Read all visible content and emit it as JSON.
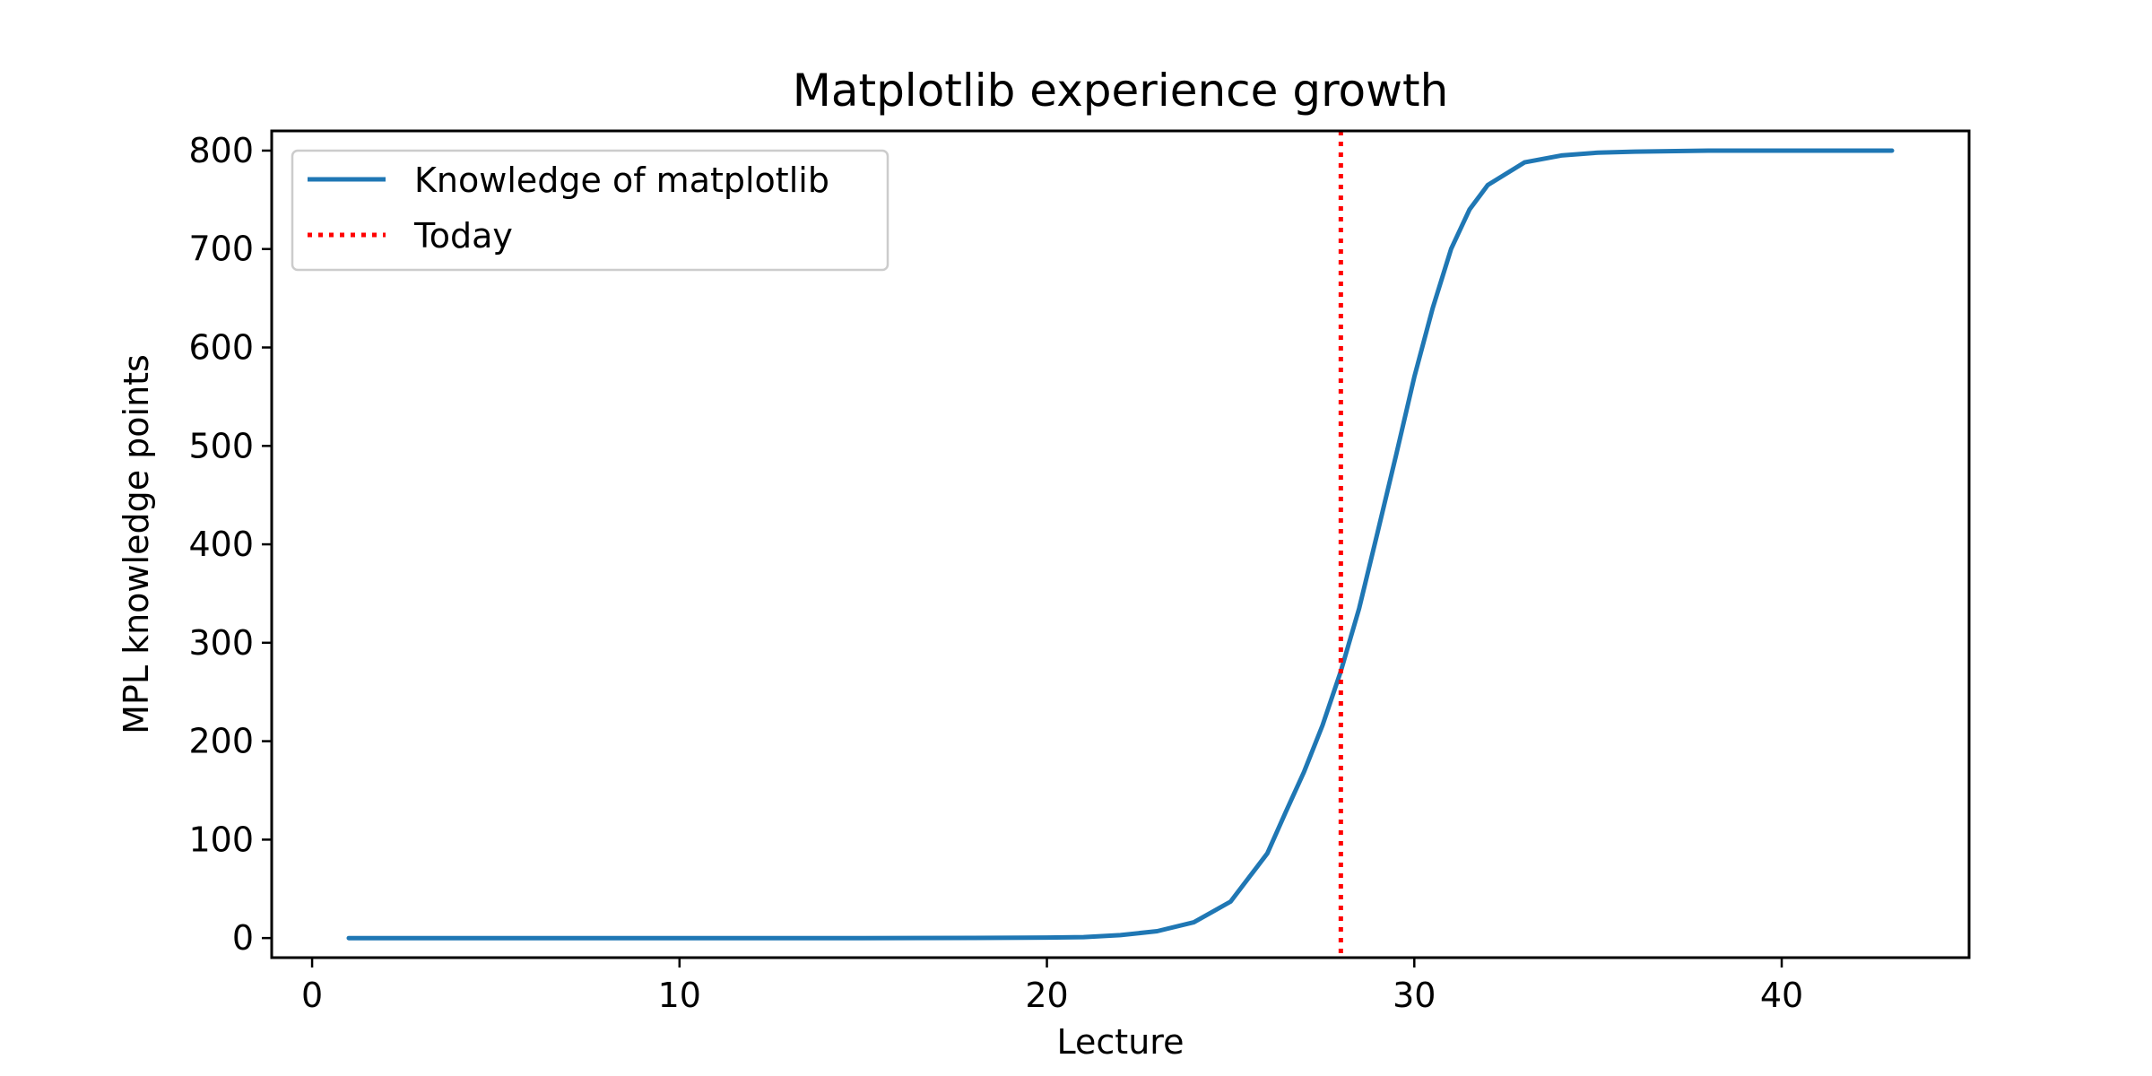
{
  "chart_data": {
    "type": "line",
    "title": "Matplotlib experience growth",
    "xlabel": "Lecture",
    "ylabel": "MPL knowledge points",
    "xlim": [
      -1.1,
      45.1
    ],
    "ylim": [
      -19.9,
      820
    ],
    "xticks": [
      0,
      10,
      20,
      30,
      40
    ],
    "yticks": [
      0,
      100,
      200,
      300,
      400,
      500,
      600,
      700,
      800
    ],
    "grid": false,
    "legend_position": "upper left",
    "series": [
      {
        "name": "Knowledge of matplotlib",
        "style": "solid",
        "color": "#1f77b4",
        "x": [
          1,
          5,
          10,
          15,
          18,
          20,
          21,
          22,
          23,
          24,
          25,
          26,
          26.5,
          27,
          27.5,
          28,
          28.5,
          29,
          29.5,
          30,
          30.5,
          31,
          31.5,
          32,
          33,
          34,
          35,
          36,
          38,
          40,
          43
        ],
        "values": [
          0,
          0,
          0,
          0,
          0.1,
          0.5,
          1,
          3,
          7,
          16,
          37,
          86,
          128,
          169,
          216,
          271,
          335,
          412,
          490,
          570,
          640,
          700,
          740,
          765,
          788,
          795,
          798,
          799,
          800,
          800,
          800
        ]
      },
      {
        "name": "Today",
        "style": "dotted",
        "color": "#ff0000",
        "type": "vline",
        "x": 28
      }
    ]
  }
}
